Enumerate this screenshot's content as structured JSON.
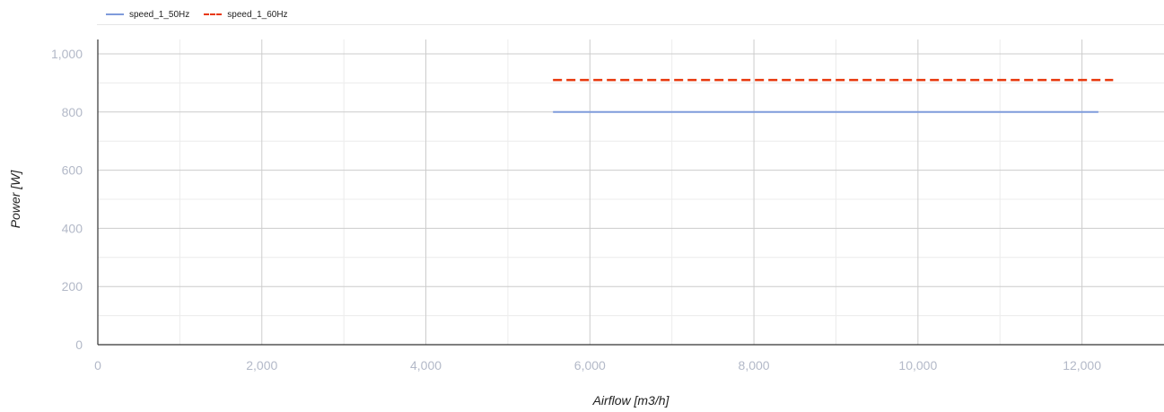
{
  "chart_data": {
    "type": "line",
    "xlabel": "Airflow [m3/h]",
    "ylabel": "Power [W]",
    "xlim": [
      0,
      13000
    ],
    "ylim": [
      0,
      1000
    ],
    "x_ticks": [
      0,
      2000,
      4000,
      6000,
      8000,
      10000,
      12000
    ],
    "x_tick_labels": [
      "0",
      "2,000",
      "4,000",
      "6,000",
      "8,000",
      "10,000",
      "12,000"
    ],
    "y_ticks": [
      0,
      200,
      400,
      600,
      800,
      1000
    ],
    "y_tick_labels": [
      "0",
      "200",
      "400",
      "600",
      "800",
      "1,000"
    ],
    "grid": true,
    "legend_position": "top-left",
    "series": [
      {
        "name": "speed_1_50Hz",
        "color": "#7f9bdb",
        "dash": "solid",
        "x": [
          5550,
          12200
        ],
        "y": [
          800,
          800
        ]
      },
      {
        "name": "speed_1_60Hz",
        "color": "#e8380d",
        "dash": "dashed",
        "x": [
          5550,
          12380
        ],
        "y": [
          910,
          910
        ]
      }
    ]
  }
}
